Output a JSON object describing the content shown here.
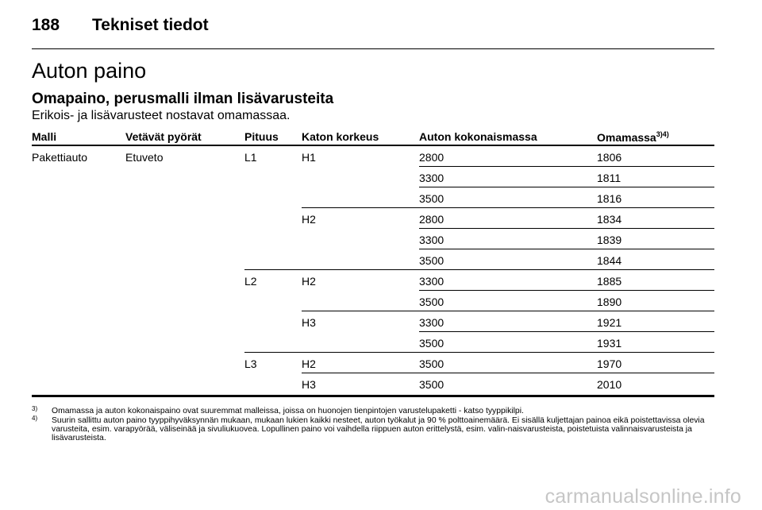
{
  "header": {
    "page_number": "188",
    "chapter_title": "Tekniset tiedot"
  },
  "section_title": "Auton paino",
  "subsection_title": "Omapaino, perusmalli ilman lisävarusteita",
  "intro_text": "Erikois- ja lisävarusteet nostavat omamassaa.",
  "table": {
    "columns": [
      "Malli",
      "Vetävät pyörät",
      "Pituus",
      "Katon korkeus",
      "Auton kokonaismassa",
      "Omamassa"
    ],
    "omamassa_footnote_refs": "3)4)",
    "malli": "Pakettiauto",
    "vetavat_pyorat": "Etuveto",
    "pituus": [
      "L1",
      "L2",
      "L3"
    ],
    "katon_korkeus": [
      "H1",
      "H2",
      "H2",
      "H3",
      "H2",
      "H3"
    ],
    "rows": [
      {
        "kokonaismassa": "2800",
        "omamassa": "1806"
      },
      {
        "kokonaismassa": "3300",
        "omamassa": "1811"
      },
      {
        "kokonaismassa": "3500",
        "omamassa": "1816"
      },
      {
        "kokonaismassa": "2800",
        "omamassa": "1834"
      },
      {
        "kokonaismassa": "3300",
        "omamassa": "1839"
      },
      {
        "kokonaismassa": "3500",
        "omamassa": "1844"
      },
      {
        "kokonaismassa": "3300",
        "omamassa": "1885"
      },
      {
        "kokonaismassa": "3500",
        "omamassa": "1890"
      },
      {
        "kokonaismassa": "3300",
        "omamassa": "1921"
      },
      {
        "kokonaismassa": "3500",
        "omamassa": "1931"
      },
      {
        "kokonaismassa": "3500",
        "omamassa": "1970"
      },
      {
        "kokonaismassa": "3500",
        "omamassa": "2010"
      }
    ]
  },
  "footnotes": [
    {
      "mark": "3)",
      "text": "Omamassa ja auton kokonaispaino ovat suuremmat malleissa, joissa on huonojen tienpintojen varustelupaketti - katso tyyppikilpi."
    },
    {
      "mark": "4)",
      "text": "Suurin sallittu auton paino tyyppihyväksynnän mukaan, mukaan lukien kaikki nesteet, auton työkalut ja 90 % polttoainemäärä. Ei sisällä kuljettajan painoa eikä poistettavissa olevia varusteita, esim. varapyörää, väliseinää ja sivuliukuovea. Lopullinen paino voi vaihdella riippuen auton erittelystä, esim. valin-naisvarusteista, poistetuista valinnaisvarusteista ja lisävarusteista."
    }
  ],
  "watermark": "carmanualsonline.info"
}
